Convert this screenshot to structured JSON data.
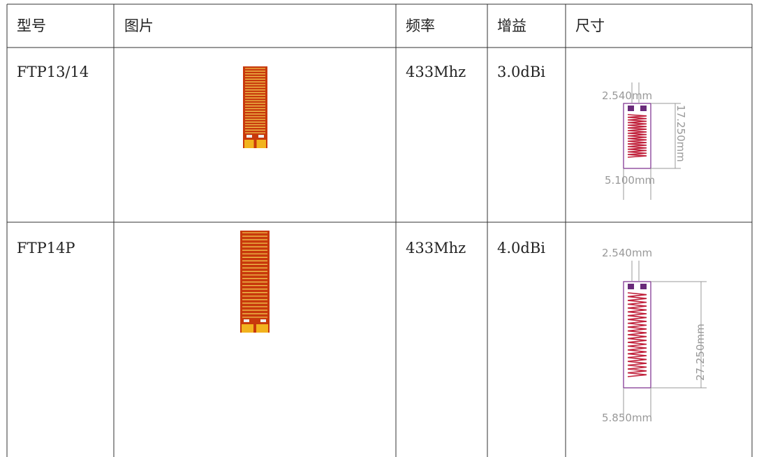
{
  "table": {
    "header": [
      "型号",
      "图片",
      "频率",
      "增益",
      "尺寸"
    ],
    "rows": [
      {
        "model": "FTP13/14",
        "frequency": "433Mhz",
        "gain": "3.0dBi",
        "dimensions": {
          "top": "2.540mm",
          "side": "17.250mm",
          "bottom": "5.100mm"
        }
      },
      {
        "model": "FTP14P",
        "frequency": "433Mhz",
        "gain": "4.0dBi",
        "dimensions": {
          "top": "2.540mm",
          "side": "27.250mm",
          "bottom": "5.850mm"
        }
      }
    ]
  }
}
